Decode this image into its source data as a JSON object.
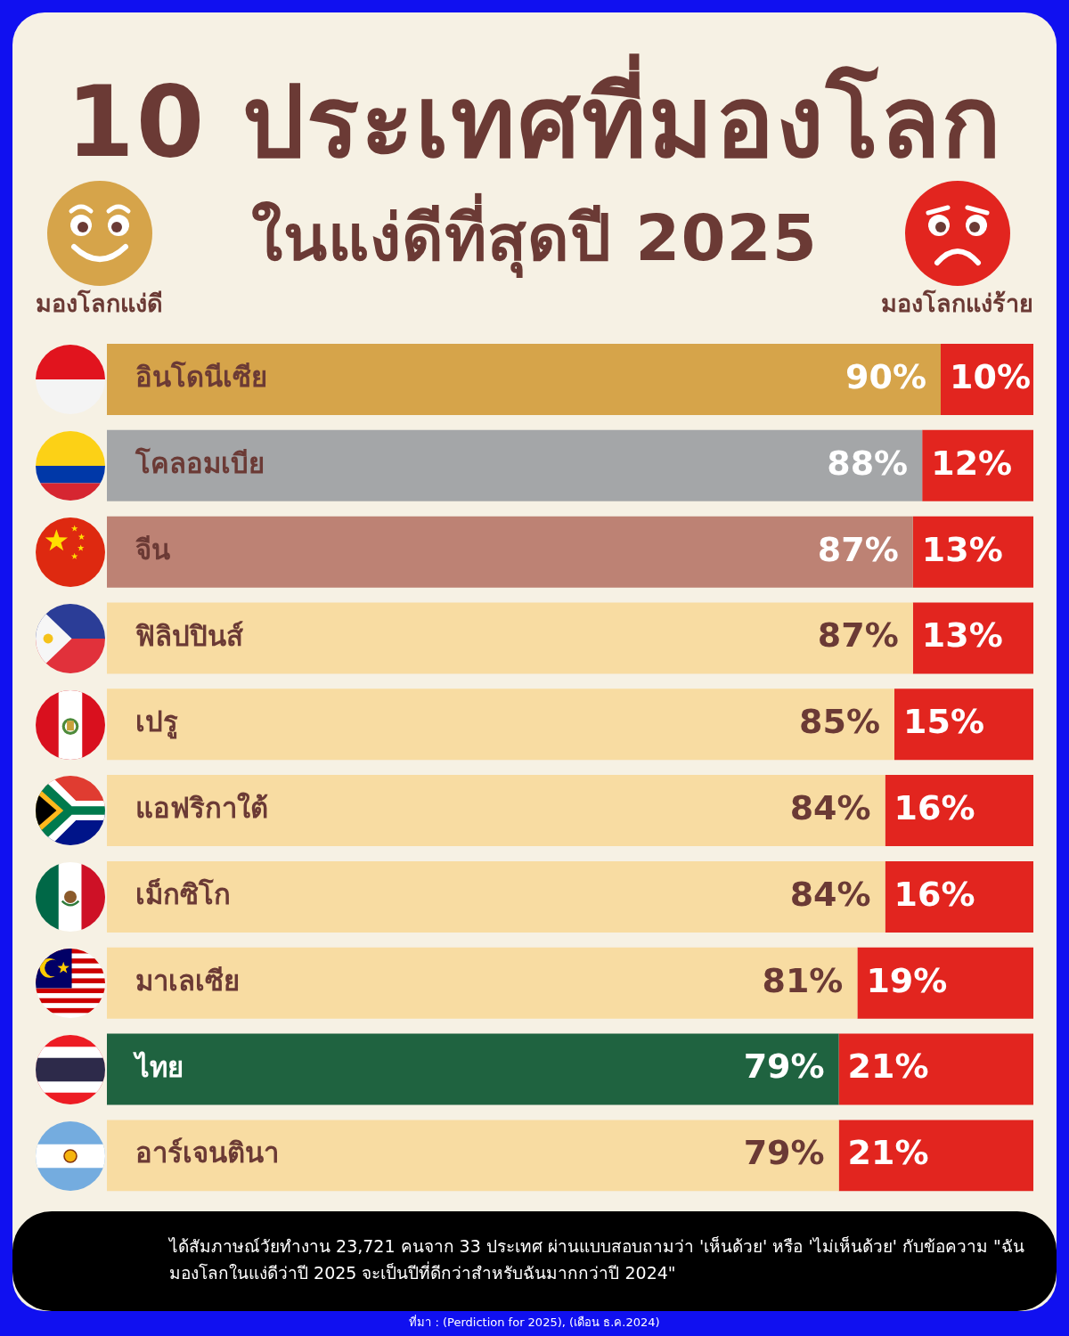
{
  "chart_data": {
    "type": "bar",
    "orientation": "horizontal",
    "stacked": true,
    "title": "10 ประเทศที่มองโลก",
    "subtitle": "ในแง่ดีที่สุดปี 2025",
    "categories": [
      "อินโดนีเซีย",
      "โคลอมเบีย",
      "จีน",
      "ฟิลิปปินส์",
      "เปรู",
      "แอฟริกาใต้",
      "เม็กซิโก",
      "มาเลเซีย",
      "ไทย",
      "อาร์เจนตินา"
    ],
    "series": [
      {
        "name": "มองโลกแง่ดี",
        "colors": [
          "#d6a44a",
          "#a4a6a8",
          "#bd8274",
          "#f8dca2",
          "#f8dca2",
          "#f8dca2",
          "#f8dca2",
          "#f8dca2",
          "#1f6340",
          "#f8dca2"
        ],
        "values": [
          90,
          88,
          87,
          87,
          85,
          84,
          84,
          81,
          79,
          79
        ],
        "value_labels": [
          "90%",
          "88%",
          "87%",
          "87%",
          "85%",
          "84%",
          "84%",
          "81%",
          "79%",
          "79%"
        ]
      },
      {
        "name": "มองโลกแง่ร้าย",
        "color": "#e2251f",
        "values": [
          10,
          12,
          13,
          13,
          15,
          16,
          16,
          19,
          21,
          21
        ],
        "value_labels": [
          "10%",
          "12%",
          "13%",
          "13%",
          "15%",
          "16%",
          "16%",
          "19%",
          "21%",
          "21%"
        ]
      }
    ],
    "legend": "top",
    "tick_labels": "y",
    "annotations": [
      "ได้สัมภาษณ์วัยทำงาน 23,721 คนจาก 33 ประเทศ ผ่านแบบสอบถามว่า 'เห็นด้วย' หรือ 'ไม่เห็นด้วย' กับข้อความ \"ฉันมองโลกในแง่ดีว่าปี 2025 จะเป็นปีที่ดีกว่าสำหรับฉันมากกว่าปี 2024\"",
      "ที่มา : (Perdiction for 2025), (เดือน ธ.ค.2024)"
    ]
  }
}
